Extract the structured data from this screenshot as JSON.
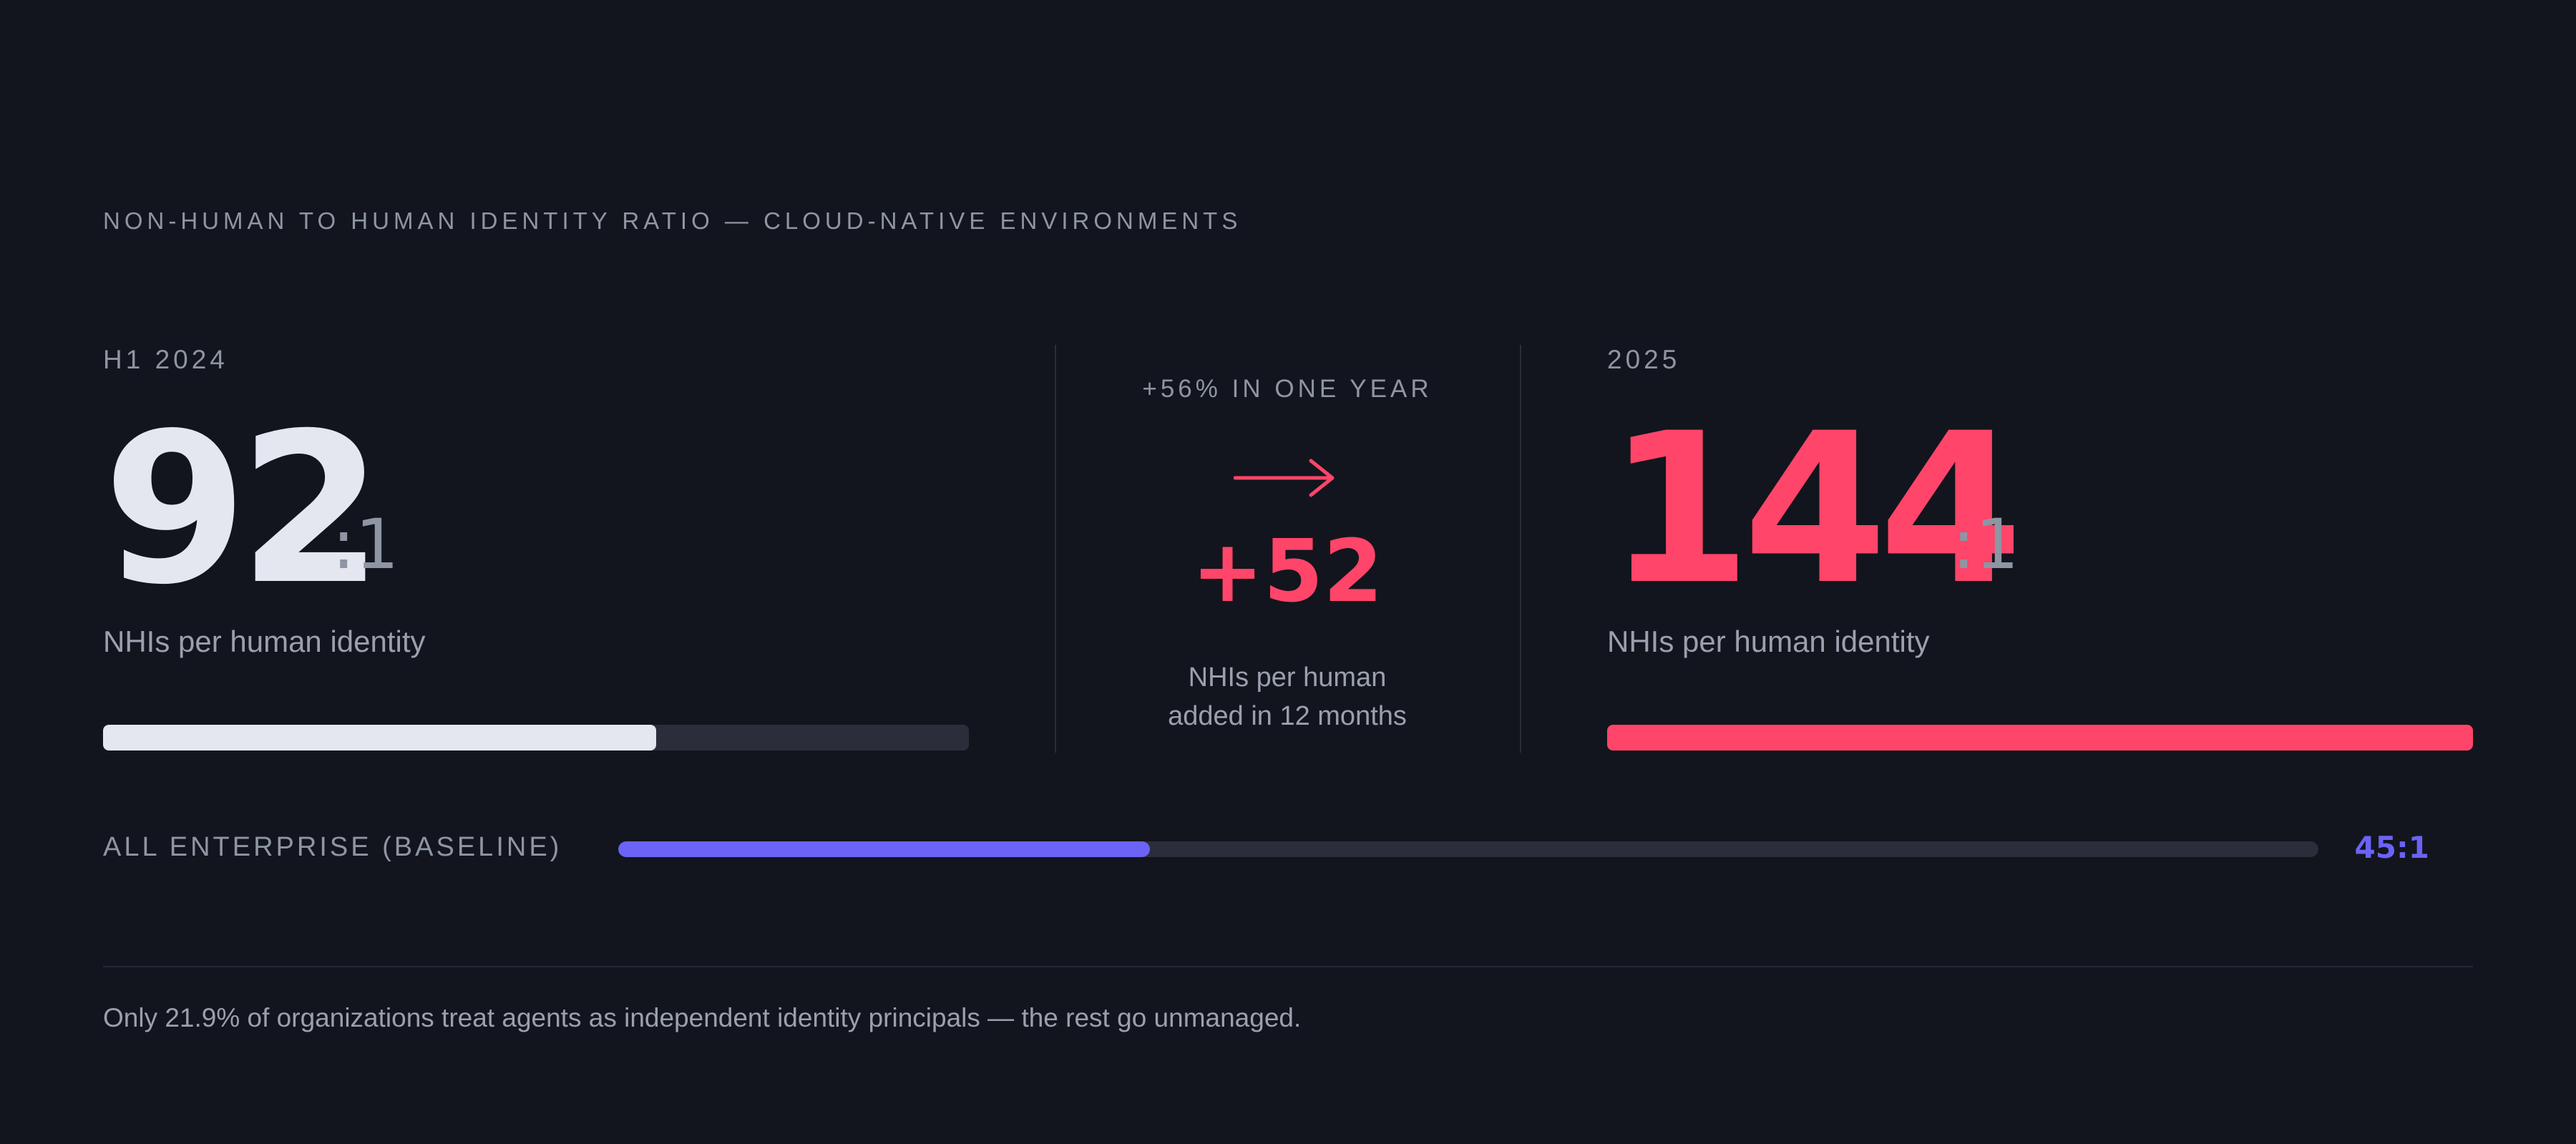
{
  "title": "NON-HUMAN TO HUMAN IDENTITY RATIO — CLOUD-NATIVE ENVIRONMENTS",
  "colors": {
    "background": "#12151d",
    "before_value": "#e4e6f0",
    "after_value": "#ff4569",
    "baseline": "#6b63f6",
    "track": "#2b2e3a"
  },
  "before": {
    "period": "H1 2024",
    "value": "92",
    "suffix": ":1",
    "caption": "NHIs per human identity"
  },
  "change": {
    "caption": "+56% IN ONE YEAR",
    "icon": "arrow-right-icon",
    "delta": "+52",
    "note_line1": "NHIs per human",
    "note_line2": "added in 12 months"
  },
  "after": {
    "period": "2025",
    "value": "144",
    "suffix": ":1",
    "caption": "NHIs per human identity"
  },
  "baseline": {
    "label": "ALL ENTERPRISE (BASELINE)",
    "value_label": "45:1"
  },
  "footnote": "Only 21.9% of organizations treat agents as independent identity principals — the rest go unmanaged.",
  "chart_data": {
    "type": "bar",
    "orientation": "horizontal",
    "categories": [
      "H1 2024",
      "2025",
      "ALL ENTERPRISE (BASELINE)"
    ],
    "values": [
      92,
      144,
      45
    ],
    "unit": "NHIs per human identity",
    "xlim": [
      0,
      144
    ],
    "grid": false
  }
}
